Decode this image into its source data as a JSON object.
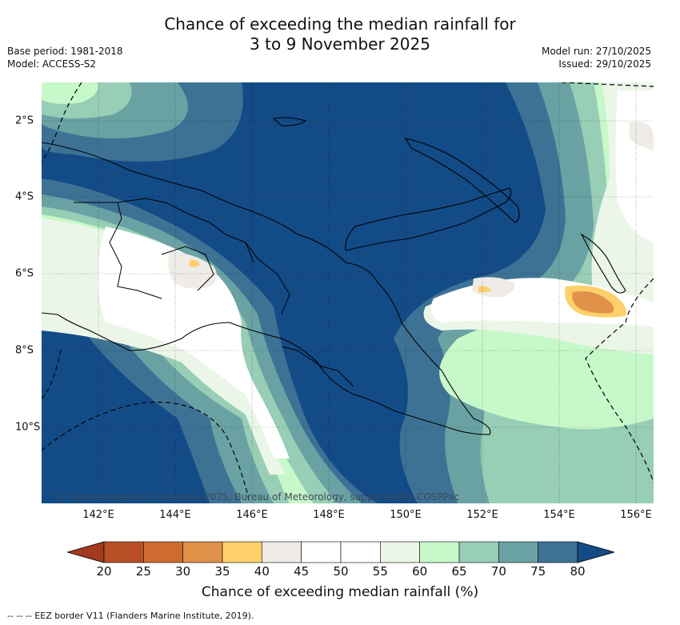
{
  "title_line1": "Chance of exceeding the median rainfall for",
  "title_line2": "3 to 9 November 2025",
  "base_period": "Base period: 1981-2018",
  "model": "Model: ACCESS-S2",
  "model_run": "Model run: 27/10/2025",
  "issued": "Issued: 29/10/2025",
  "copyright": "© Commonwealth of Australia 2025, Bureau of Meteorology, supported by COSPPac",
  "longitude_labels": [
    "142°E",
    "144°E",
    "146°E",
    "148°E",
    "150°E",
    "152°E",
    "154°E",
    "156°E"
  ],
  "latitude_labels": [
    "2°S",
    "4°S",
    "6°S",
    "8°S",
    "10°S"
  ],
  "colorbar": {
    "label": "Chance of exceeding median rainfall (%)",
    "ticks": [
      "20",
      "25",
      "30",
      "35",
      "40",
      "45",
      "50",
      "55",
      "60",
      "65",
      "70",
      "75",
      "80"
    ],
    "colors": [
      "#a33a1f",
      "#b84f24",
      "#cf6a31",
      "#e0924a",
      "#fdd06a",
      "#efebe6",
      "#ffffff",
      "#ffffff",
      "#ebf6e9",
      "#c7f8c9",
      "#98cdb6",
      "#6aa2a4",
      "#3d7295",
      "#134b87"
    ]
  },
  "legend_note": "-- -- -- EEZ border V11 (Flanders Marine Institute, 2019)."
}
